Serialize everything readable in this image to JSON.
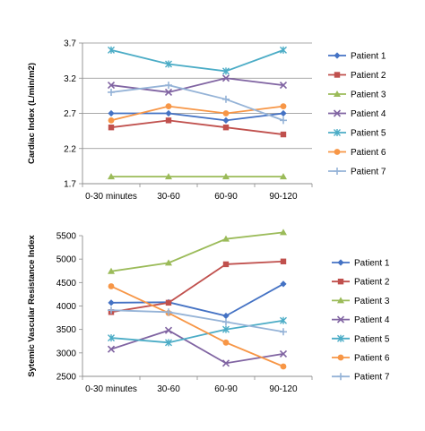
{
  "chart_data": [
    {
      "type": "line",
      "title": "",
      "xlabel": "",
      "ylabel": "Cardiac Index (L/min/m2)",
      "categories": [
        "0-30 minutes",
        "30-60",
        "60-90",
        "90-120"
      ],
      "ylim": [
        1.7,
        3.7
      ],
      "yticks": [
        "1.7",
        "2.2",
        "2.7",
        "3.2",
        "3.7"
      ],
      "grid": true,
      "legend_position": "right",
      "series": [
        {
          "name": "Patient 1",
          "color": "#4472C4",
          "marker": "diamond",
          "values": [
            2.7,
            2.7,
            2.6,
            2.7
          ]
        },
        {
          "name": "Patient 2",
          "color": "#C0504D",
          "marker": "square",
          "values": [
            2.5,
            2.6,
            2.5,
            2.4
          ]
        },
        {
          "name": "Patient 3",
          "color": "#9BBB59",
          "marker": "triangle",
          "values": [
            1.8,
            1.8,
            1.8,
            1.8
          ]
        },
        {
          "name": "Patient 4",
          "color": "#8064A2",
          "marker": "x",
          "values": [
            3.1,
            3.0,
            3.2,
            3.1
          ]
        },
        {
          "name": "Patient 5",
          "color": "#4BACC6",
          "marker": "star",
          "values": [
            3.6,
            3.4,
            3.3,
            3.6
          ]
        },
        {
          "name": "Patient 6",
          "color": "#F79646",
          "marker": "circle",
          "values": [
            2.6,
            2.8,
            2.7,
            2.8
          ]
        },
        {
          "name": "Patient 7",
          "color": "#95B3D7",
          "marker": "plus",
          "values": [
            3.0,
            3.1,
            2.9,
            2.6
          ]
        }
      ]
    },
    {
      "type": "line",
      "title": "",
      "xlabel": "",
      "ylabel": "Sytemic Vascular Resistance Index",
      "categories": [
        "0-30 minutes",
        "30-60",
        "60-90",
        "90-120"
      ],
      "ylim": [
        2500,
        5500
      ],
      "yticks": [
        "2500",
        "3000",
        "3500",
        "4000",
        "4500",
        "5000",
        "5500"
      ],
      "grid": false,
      "legend_position": "right",
      "series": [
        {
          "name": "Patient 1",
          "color": "#4472C4",
          "marker": "diamond",
          "values": [
            4070,
            4080,
            3790,
            4470
          ]
        },
        {
          "name": "Patient 2",
          "color": "#C0504D",
          "marker": "square",
          "values": [
            3870,
            4070,
            4890,
            4950
          ]
        },
        {
          "name": "Patient 3",
          "color": "#9BBB59",
          "marker": "triangle",
          "values": [
            4740,
            4920,
            5430,
            5570
          ]
        },
        {
          "name": "Patient 4",
          "color": "#8064A2",
          "marker": "x",
          "values": [
            3080,
            3480,
            2780,
            2980
          ]
        },
        {
          "name": "Patient 5",
          "color": "#4BACC6",
          "marker": "star",
          "values": [
            3320,
            3220,
            3500,
            3690
          ]
        },
        {
          "name": "Patient 6",
          "color": "#F79646",
          "marker": "circle",
          "values": [
            4420,
            3850,
            3220,
            2710
          ]
        },
        {
          "name": "Patient 7",
          "color": "#95B3D7",
          "marker": "plus",
          "values": [
            3910,
            3870,
            3660,
            3450
          ]
        }
      ]
    }
  ]
}
